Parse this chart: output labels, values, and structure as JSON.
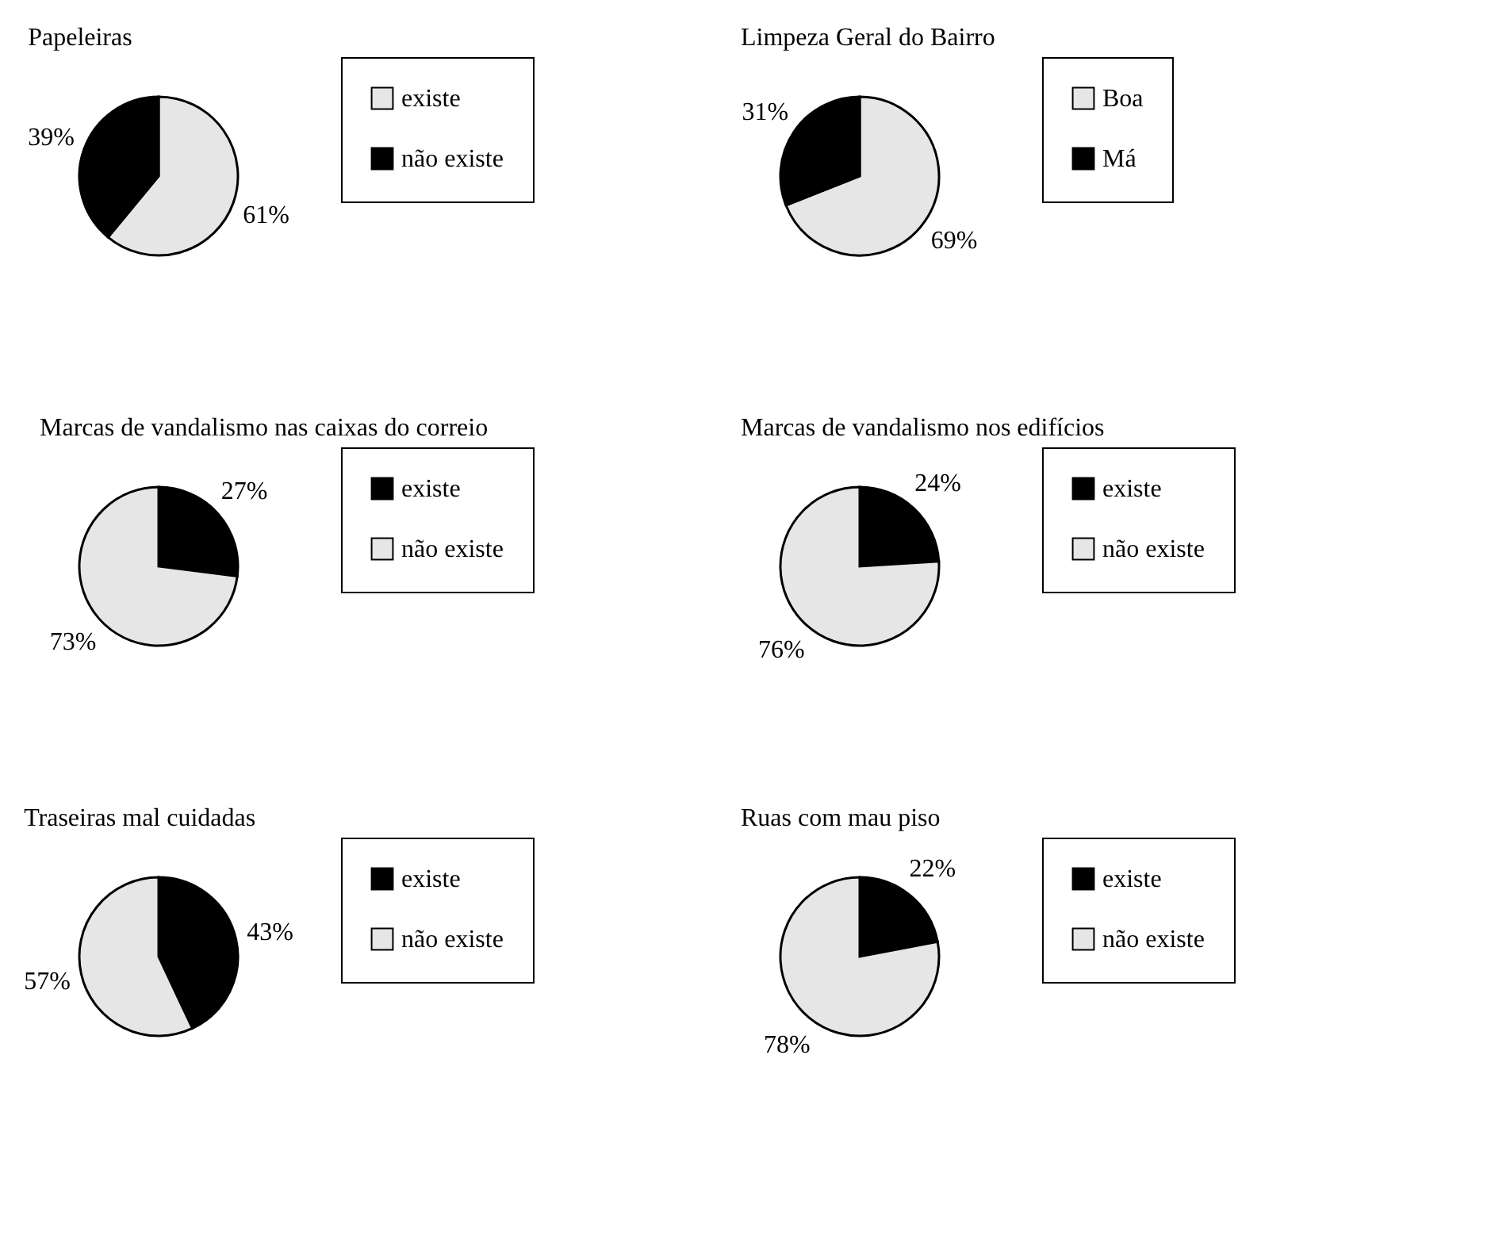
{
  "chart_data": [
    {
      "type": "pie",
      "title": "Papeleiras",
      "categories": [
        "existe",
        "não existe"
      ],
      "values": [
        61,
        39
      ],
      "colors": [
        "#e6e6e6",
        "#000000"
      ],
      "value_labels": [
        "61%",
        "39%"
      ],
      "legend": "right"
    },
    {
      "type": "pie",
      "title": "Limpeza Geral do Bairro",
      "categories": [
        "Boa",
        "Má"
      ],
      "values": [
        69,
        31
      ],
      "colors": [
        "#e6e6e6",
        "#000000"
      ],
      "value_labels": [
        "69%",
        "31%"
      ],
      "legend": "right"
    },
    {
      "type": "pie",
      "title": "Marcas de vandalismo nas caixas do correio",
      "categories": [
        "existe",
        "não existe"
      ],
      "values": [
        27,
        73
      ],
      "colors": [
        "#000000",
        "#e6e6e6"
      ],
      "value_labels": [
        "27%",
        "73%"
      ],
      "legend": "right"
    },
    {
      "type": "pie",
      "title": "Marcas de vandalismo nos edifícios",
      "categories": [
        "existe",
        "não existe"
      ],
      "values": [
        24,
        76
      ],
      "colors": [
        "#000000",
        "#e6e6e6"
      ],
      "value_labels": [
        "24%",
        "76%"
      ],
      "legend": "right"
    },
    {
      "type": "pie",
      "title": "Traseiras mal cuidadas",
      "categories": [
        "existe",
        "não existe"
      ],
      "values": [
        43,
        57
      ],
      "colors": [
        "#000000",
        "#e6e6e6"
      ],
      "value_labels": [
        "43%",
        "57%"
      ],
      "legend": "right"
    },
    {
      "type": "pie",
      "title": "Ruas com mau piso",
      "categories": [
        "existe",
        "não existe"
      ],
      "values": [
        22,
        78
      ],
      "colors": [
        "#000000",
        "#e6e6e6"
      ],
      "value_labels": [
        "22%",
        "78%"
      ],
      "legend": "right"
    }
  ]
}
